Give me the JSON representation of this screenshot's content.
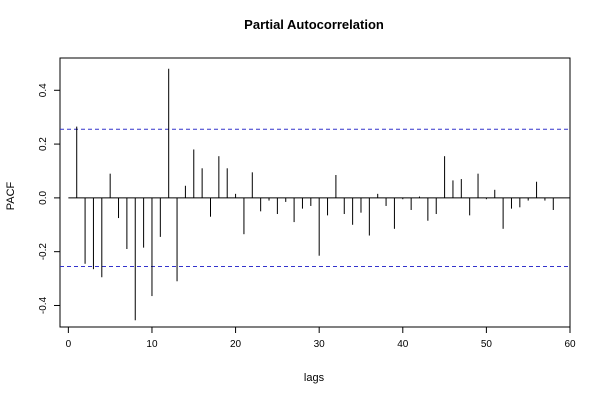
{
  "chart_data": {
    "type": "bar",
    "title": "Partial Autocorrelation",
    "xlabel": "lags",
    "ylabel": "PACF",
    "xlim": [
      -1,
      60
    ],
    "ylim": [
      -0.48,
      0.52
    ],
    "x_ticks": [
      0,
      10,
      20,
      30,
      40,
      50,
      60
    ],
    "y_ticks": [
      -0.4,
      -0.2,
      0.0,
      0.2,
      0.4
    ],
    "y_tick_labels": [
      "-0.4",
      "-0.2",
      "0.0",
      "0.2",
      "0.4"
    ],
    "confidence_limit": 0.255,
    "confidence_color": "#3333cc",
    "lags": [
      1,
      2,
      3,
      4,
      5,
      6,
      7,
      8,
      9,
      10,
      11,
      12,
      13,
      14,
      15,
      16,
      17,
      18,
      19,
      20,
      21,
      22,
      23,
      24,
      25,
      26,
      27,
      28,
      29,
      30,
      31,
      32,
      33,
      34,
      35,
      36,
      37,
      38,
      39,
      40,
      41,
      42,
      43,
      44,
      45,
      46,
      47,
      48,
      49,
      50,
      51,
      52,
      53,
      54,
      55,
      56,
      57,
      58
    ],
    "values": [
      0.265,
      -0.245,
      -0.265,
      -0.295,
      0.09,
      -0.075,
      -0.19,
      -0.455,
      -0.185,
      -0.365,
      -0.145,
      0.48,
      -0.31,
      0.045,
      0.18,
      0.11,
      -0.07,
      0.155,
      0.11,
      0.015,
      -0.135,
      0.095,
      -0.05,
      -0.01,
      -0.06,
      -0.015,
      -0.09,
      -0.04,
      -0.03,
      -0.215,
      -0.065,
      0.085,
      -0.06,
      -0.1,
      -0.055,
      -0.14,
      0.015,
      -0.03,
      -0.115,
      -0.005,
      -0.045,
      0.005,
      -0.085,
      -0.06,
      0.155,
      0.065,
      0.07,
      -0.065,
      0.09,
      -0.005,
      0.03,
      -0.115,
      -0.04,
      -0.035,
      -0.01,
      0.06,
      -0.01,
      -0.045
    ]
  }
}
